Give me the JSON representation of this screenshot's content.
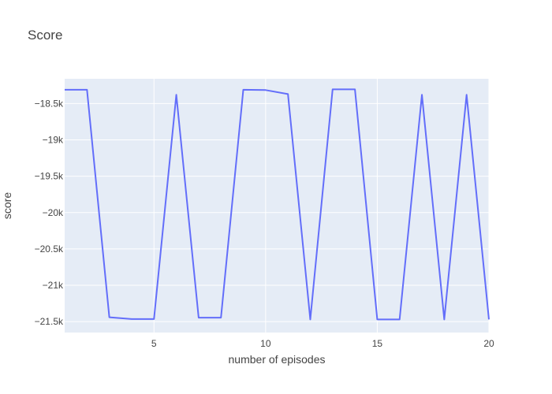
{
  "chart_data": {
    "type": "line",
    "title": "Score",
    "xlabel": "number of episodes",
    "ylabel": "score",
    "xlim": [
      1,
      20
    ],
    "ylim": [
      -21650,
      -18160
    ],
    "x_ticks": [
      5,
      10,
      15,
      20
    ],
    "x_tick_labels": [
      "5",
      "10",
      "15",
      "20"
    ],
    "y_ticks": [
      -21500,
      -21000,
      -20500,
      -20000,
      -19500,
      -19000,
      -18500
    ],
    "y_tick_labels": [
      "−21.5k",
      "−21k",
      "−20.5k",
      "−20k",
      "−19.5k",
      "−19k",
      "−18.5k"
    ],
    "grid": true,
    "colors": {
      "line": "#636efa",
      "plot_bg": "#e5ecf6",
      "grid": "#ffffff"
    },
    "series": [
      {
        "x": [
          1,
          2,
          3,
          4,
          5,
          6,
          7,
          8,
          9,
          10,
          11,
          12,
          13,
          14,
          15,
          16,
          17,
          18,
          19,
          20
        ],
        "values": [
          -18310,
          -18310,
          -21440,
          -21465,
          -21465,
          -18380,
          -21445,
          -21445,
          -18310,
          -18315,
          -18370,
          -21470,
          -18305,
          -18305,
          -21470,
          -21470,
          -18380,
          -21470,
          -18380,
          -21470
        ]
      }
    ]
  }
}
